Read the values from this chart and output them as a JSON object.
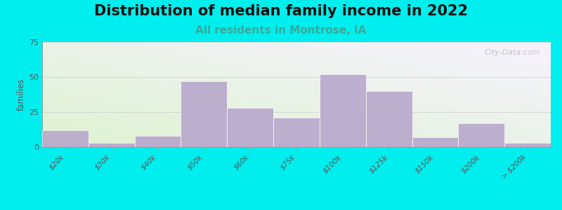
{
  "title": "Distribution of median family income in 2022",
  "subtitle": "All residents in Montrose, IA",
  "ylabel": "families",
  "categories": [
    "$20k",
    "$30k",
    "$40k",
    "$50k",
    "$60k",
    "$75k",
    "$100k",
    "$125k",
    "$150k",
    "$200k",
    "> $200k"
  ],
  "values": [
    12,
    3,
    8,
    47,
    28,
    21,
    52,
    40,
    7,
    17,
    3
  ],
  "bar_color": "#b8a8cc",
  "bar_edge_color": "#ffffff",
  "ylim": [
    0,
    75
  ],
  "yticks": [
    0,
    25,
    50,
    75
  ],
  "bg_green": "#dff0d0",
  "bg_white": "#f8f8ff",
  "outer_bg": "#00eeee",
  "title_fontsize": 15,
  "subtitle_fontsize": 11,
  "subtitle_color": "#3aaa99",
  "watermark": "City-Data.com"
}
